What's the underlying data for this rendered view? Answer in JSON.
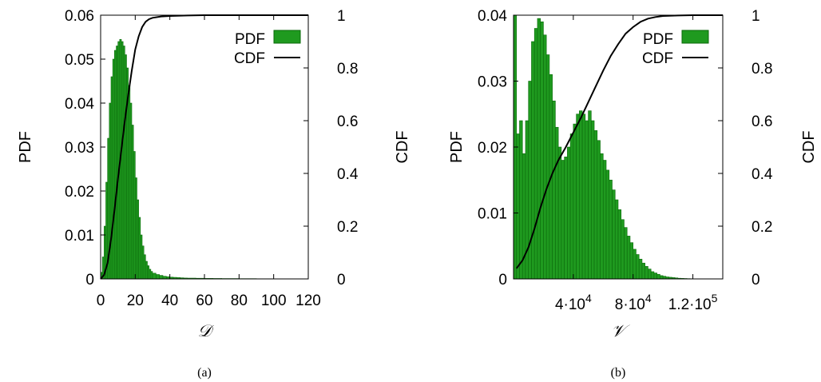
{
  "chart_data": [
    {
      "type": "bar",
      "caption": "(a)",
      "xlabel": "𝒟",
      "ylabel": "PDF",
      "y2label": "CDF",
      "xlim": [
        0,
        120
      ],
      "ylim": [
        0,
        0.06
      ],
      "y2lim": [
        0,
        1
      ],
      "xticks": [
        "0",
        "20",
        "40",
        "60",
        "80",
        "100",
        "120"
      ],
      "yticks": [
        "0",
        "0.01",
        "0.02",
        "0.03",
        "0.04",
        "0.05",
        "0.06"
      ],
      "y2ticks": [
        "0",
        "0.2",
        "0.4",
        "0.6",
        "0.8",
        "1"
      ],
      "legend": {
        "position": "top-right",
        "entries": [
          "PDF",
          "CDF"
        ]
      },
      "colors": {
        "pdf": "#1f9a1f",
        "pdf_edge": "#0b6a0b",
        "cdf": "#000000"
      },
      "series": [
        {
          "name": "PDF",
          "type": "bar",
          "x": [
            0,
            1,
            2,
            3,
            4,
            5,
            6,
            7,
            8,
            9,
            10,
            11,
            12,
            13,
            14,
            15,
            16,
            17,
            18,
            19,
            20,
            21,
            22,
            23,
            24,
            25,
            26,
            27,
            28,
            29,
            30,
            32,
            34,
            36,
            38,
            40,
            42,
            44,
            46,
            48,
            50,
            55,
            60,
            65,
            70,
            80,
            90,
            100
          ],
          "values": [
            0.0015,
            0.005,
            0.012,
            0.022,
            0.032,
            0.04,
            0.046,
            0.05,
            0.052,
            0.053,
            0.054,
            0.0545,
            0.054,
            0.053,
            0.051,
            0.048,
            0.044,
            0.04,
            0.035,
            0.029,
            0.023,
            0.018,
            0.014,
            0.01,
            0.0075,
            0.0055,
            0.004,
            0.003,
            0.0022,
            0.0017,
            0.0013,
            0.001,
            0.0008,
            0.0006,
            0.0005,
            0.0004,
            0.00035,
            0.0003,
            0.00025,
            0.0002,
            0.00018,
            0.00015,
            0.00012,
            0.0001,
            8e-05,
            6e-05,
            4e-05,
            3e-05
          ]
        },
        {
          "name": "CDF",
          "type": "line",
          "x": [
            0,
            2,
            4,
            6,
            8,
            10,
            12,
            14,
            16,
            18,
            20,
            22,
            24,
            26,
            28,
            30,
            35,
            40,
            50,
            60,
            80,
            100,
            120
          ],
          "values": [
            0,
            0.015,
            0.06,
            0.15,
            0.26,
            0.38,
            0.49,
            0.6,
            0.7,
            0.79,
            0.87,
            0.92,
            0.955,
            0.975,
            0.985,
            0.99,
            0.995,
            0.997,
            0.999,
            1,
            1,
            1,
            1
          ]
        }
      ]
    },
    {
      "type": "bar",
      "caption": "(b)",
      "xlabel": "𝒱",
      "ylabel": "PDF",
      "y2label": "CDF",
      "xlim": [
        0,
        140000
      ],
      "ylim": [
        0,
        0.04
      ],
      "y2lim": [
        0,
        1
      ],
      "xticks": [
        {
          "value": 40000,
          "mant": "4·10",
          "exp": "4"
        },
        {
          "value": 80000,
          "mant": "8·10",
          "exp": "4"
        },
        {
          "value": 120000,
          "mant": "1.2·10",
          "exp": "5"
        }
      ],
      "yticks": [
        "0",
        "0.01",
        "0.02",
        "0.03",
        "0.04"
      ],
      "y2ticks": [
        "0",
        "0.2",
        "0.4",
        "0.6",
        "0.8",
        "1"
      ],
      "legend": {
        "position": "top-right",
        "entries": [
          "PDF",
          "CDF"
        ]
      },
      "colors": {
        "pdf": "#1f9a1f",
        "pdf_edge": "#0b6a0b",
        "cdf": "#000000"
      },
      "series": [
        {
          "name": "PDF",
          "type": "bar",
          "x": [
            0,
            2000,
            4000,
            6000,
            8000,
            10000,
            12000,
            14000,
            16000,
            18000,
            20000,
            22000,
            24000,
            26000,
            28000,
            30000,
            32000,
            34000,
            36000,
            38000,
            40000,
            42000,
            44000,
            46000,
            48000,
            50000,
            52000,
            54000,
            56000,
            58000,
            60000,
            62000,
            64000,
            66000,
            68000,
            70000,
            72000,
            74000,
            76000,
            78000,
            80000,
            82000,
            84000,
            86000,
            88000,
            90000,
            92000,
            94000,
            96000,
            98000,
            100000,
            102000,
            104000,
            106000,
            108000,
            110000,
            112000,
            114000,
            116000,
            118000,
            120000,
            122000,
            124000,
            126000
          ],
          "values": [
            0.04,
            0.022,
            0.024,
            0.019,
            0.024,
            0.03,
            0.036,
            0.038,
            0.0395,
            0.039,
            0.037,
            0.034,
            0.031,
            0.027,
            0.023,
            0.02,
            0.018,
            0.0185,
            0.02,
            0.022,
            0.0235,
            0.025,
            0.0255,
            0.025,
            0.024,
            0.0255,
            0.024,
            0.0225,
            0.021,
            0.019,
            0.018,
            0.0165,
            0.015,
            0.0135,
            0.012,
            0.0105,
            0.009,
            0.0078,
            0.0065,
            0.0055,
            0.0045,
            0.0037,
            0.003,
            0.0024,
            0.0019,
            0.0015,
            0.0011,
            0.0009,
            0.0007,
            0.0005,
            0.0004,
            0.0003,
            0.00025,
            0.0002,
            0.00015,
            0.0001,
            8e-05,
            6e-05,
            4e-05,
            3e-05,
            2e-05,
            1e-05,
            1e-05,
            5e-06
          ]
        },
        {
          "name": "CDF",
          "type": "line",
          "x": [
            2000,
            6000,
            10000,
            14000,
            18000,
            22000,
            26000,
            30000,
            35000,
            40000,
            45000,
            50000,
            55000,
            60000,
            65000,
            70000,
            75000,
            80000,
            85000,
            90000,
            95000,
            100000,
            110000,
            120000,
            140000
          ],
          "values": [
            0.04,
            0.07,
            0.12,
            0.19,
            0.27,
            0.34,
            0.4,
            0.45,
            0.5,
            0.555,
            0.61,
            0.67,
            0.73,
            0.79,
            0.845,
            0.89,
            0.93,
            0.955,
            0.975,
            0.987,
            0.993,
            0.997,
            0.999,
            1,
            1
          ]
        }
      ]
    }
  ]
}
